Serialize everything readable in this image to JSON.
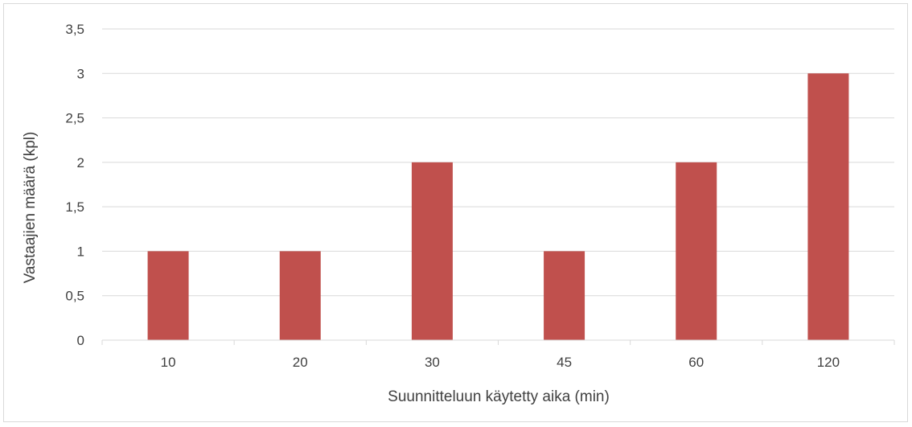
{
  "chart_data": {
    "type": "bar",
    "title": "",
    "xlabel": "Suunnitteluun käytetty aika (min)",
    "ylabel": "Vastaajien määrä (kpl)",
    "categories": [
      "10",
      "20",
      "30",
      "45",
      "60",
      "120"
    ],
    "values": [
      1,
      1,
      2,
      1,
      2,
      3
    ],
    "ylim": [
      0,
      3.5
    ],
    "yticks": [
      0,
      0.5,
      1,
      1.5,
      2,
      2.5,
      3,
      3.5
    ],
    "ytick_labels": [
      "0",
      "0,5",
      "1",
      "1,5",
      "2",
      "2,5",
      "3",
      "3,5"
    ],
    "grid": true,
    "legend": "none",
    "bar_color": "#c0504d",
    "grid_color": "#d9d9d9",
    "text_color": "#404040"
  }
}
